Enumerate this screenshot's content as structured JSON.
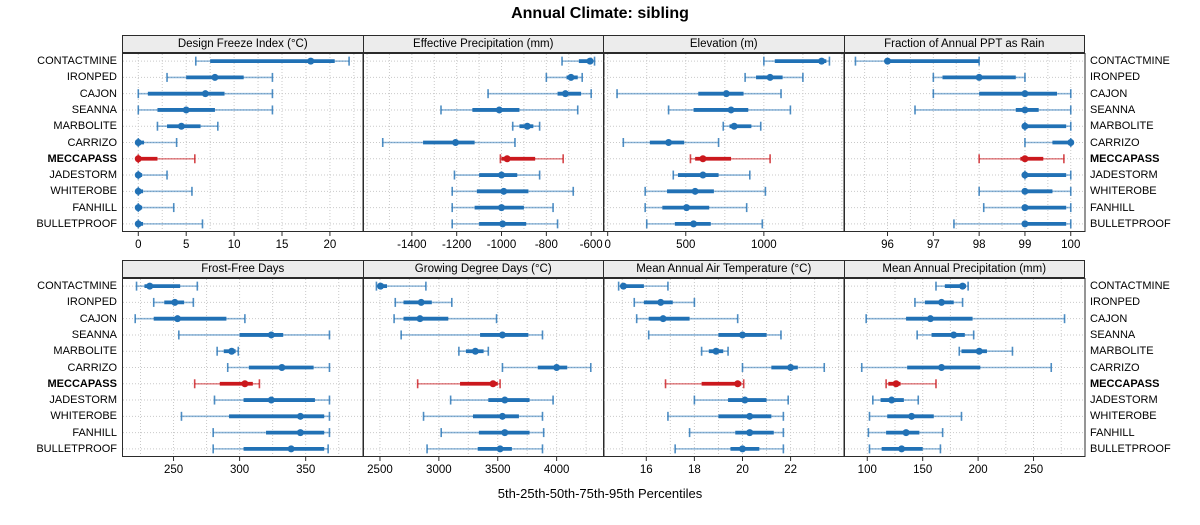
{
  "title": "Annual Climate: sibling",
  "footer": "5th-25th-50th-75th-95th Percentiles",
  "colors": {
    "series": "#2171B5",
    "highlight": "#CB181D",
    "grid": "#C9C9C9",
    "strip_bg": "#ECECEC",
    "border": "#2B2B2B",
    "text": "#000000"
  },
  "sites": [
    "CONTACTMINE",
    "IRONPED",
    "CAJON",
    "SEANNA",
    "MARBOLITE",
    "CARRIZO",
    "MECCAPASS",
    "JADESTORM",
    "WHITEROBE",
    "FANHILL",
    "BULLETPROOF"
  ],
  "highlight_site": "MECCAPASS",
  "percentile_order": [
    "p5",
    "p25",
    "p50",
    "p75",
    "p95"
  ],
  "chart_data": [
    {
      "type": "dotplot-percentiles",
      "title": "Design Freeze Index (°C)",
      "xlim": [
        -1.7,
        23.4
      ],
      "ticks": [
        0,
        5,
        10,
        15,
        20
      ],
      "grid_step": 2.5,
      "values": [
        [
          6,
          7.5,
          18,
          20.5,
          22
        ],
        [
          3,
          5,
          8,
          11,
          14
        ],
        [
          0,
          1,
          7,
          9,
          14
        ],
        [
          0,
          2,
          5,
          8,
          14
        ],
        [
          2,
          3,
          4.5,
          6.5,
          8.3
        ],
        [
          0,
          0,
          0,
          0.6,
          4
        ],
        [
          0,
          0,
          0,
          2,
          5.9
        ],
        [
          0,
          0,
          0,
          0.4,
          3
        ],
        [
          0,
          0,
          0,
          0.5,
          5.6
        ],
        [
          0,
          0,
          0,
          0.4,
          3.7
        ],
        [
          0,
          0,
          0,
          0.5,
          6.7
        ]
      ]
    },
    {
      "type": "dotplot-percentiles",
      "title": "Effective Precipitation (mm)",
      "xlim": [
        -1618,
        -545
      ],
      "ticks": [
        -1400,
        -1200,
        -1000,
        -800,
        -600
      ],
      "grid_step": 100,
      "values": [
        [
          -730,
          -655,
          -605,
          -597,
          -585
        ],
        [
          -800,
          -710,
          -690,
          -660,
          -640
        ],
        [
          -1060,
          -750,
          -715,
          -645,
          -600
        ],
        [
          -1270,
          -1130,
          -1010,
          -920,
          -660
        ],
        [
          -950,
          -920,
          -885,
          -858,
          -830
        ],
        [
          -1530,
          -1350,
          -1205,
          -1120,
          -940
        ],
        [
          -1005,
          -1000,
          -975,
          -850,
          -725
        ],
        [
          -1210,
          -1100,
          -1000,
          -930,
          -830
        ],
        [
          -1220,
          -1110,
          -990,
          -880,
          -680
        ],
        [
          -1220,
          -1120,
          -1000,
          -900,
          -770
        ],
        [
          -1220,
          -1100,
          -995,
          -890,
          -750
        ]
      ]
    },
    {
      "type": "dotplot-percentiles",
      "title": "Elevation (m)",
      "xlim": [
        -30,
        1510
      ],
      "ticks": [
        0,
        500,
        1000
      ],
      "grid_step": 250,
      "values": [
        [
          1000,
          1070,
          1370,
          1400,
          1420
        ],
        [
          880,
          950,
          1040,
          1120,
          1250
        ],
        [
          60,
          580,
          760,
          870,
          1110
        ],
        [
          390,
          550,
          790,
          900,
          1170
        ],
        [
          740,
          780,
          810,
          920,
          980
        ],
        [
          100,
          270,
          390,
          490,
          710
        ],
        [
          530,
          560,
          610,
          790,
          1040
        ],
        [
          420,
          450,
          610,
          710,
          910
        ],
        [
          240,
          380,
          560,
          680,
          1010
        ],
        [
          240,
          350,
          505,
          650,
          890
        ],
        [
          250,
          430,
          550,
          660,
          990
        ]
      ]
    },
    {
      "type": "dotplot-percentiles",
      "title": "Fraction of Annual PPT as Rain",
      "xlim": [
        95.05,
        100.3
      ],
      "ticks": [
        96,
        97,
        98,
        99,
        100
      ],
      "grid_step": 0.5,
      "values": [
        [
          95.3,
          96,
          96,
          98,
          98
        ],
        [
          97,
          97.2,
          98,
          98.8,
          99
        ],
        [
          97,
          98,
          99,
          99.7,
          100
        ],
        [
          96.6,
          98.8,
          99,
          99.3,
          100
        ],
        [
          99,
          99,
          99,
          99.9,
          100
        ],
        [
          99,
          99.6,
          100,
          100,
          100
        ],
        [
          98,
          98.9,
          99,
          99.4,
          99.85
        ],
        [
          99,
          99,
          99,
          99.9,
          100
        ],
        [
          98,
          99,
          99,
          99.6,
          100
        ],
        [
          98.1,
          99,
          99,
          99.9,
          100
        ],
        [
          97.45,
          99,
          99,
          99.9,
          100
        ]
      ]
    },
    {
      "type": "dotplot-percentiles",
      "title": "Frost-Free Days",
      "xlim": [
        211,
        393
      ],
      "ticks": [
        250,
        300,
        350
      ],
      "grid_step": 25,
      "values": [
        [
          222,
          228,
          232,
          255,
          268
        ],
        [
          235,
          243,
          251,
          258,
          265
        ],
        [
          221,
          235,
          253,
          290,
          304
        ],
        [
          254,
          300,
          324,
          333,
          368
        ],
        [
          283,
          288,
          294,
          297,
          299
        ],
        [
          291,
          307,
          332,
          356,
          368
        ],
        [
          266,
          285,
          304,
          310,
          315
        ],
        [
          281,
          303,
          324,
          357,
          368
        ],
        [
          256,
          292,
          346,
          364,
          368
        ],
        [
          280,
          320,
          346,
          364,
          368
        ],
        [
          280,
          303,
          339,
          364,
          367
        ]
      ]
    },
    {
      "type": "dotplot-percentiles",
      "title": "Growing Degree Days (°C)",
      "xlim": [
        2356,
        4398
      ],
      "ticks": [
        2500,
        3000,
        3500,
        4000
      ],
      "grid_step": 250,
      "values": [
        [
          2470,
          2485,
          2505,
          2560,
          2890
        ],
        [
          2630,
          2700,
          2850,
          2940,
          3110
        ],
        [
          2620,
          2700,
          2840,
          3080,
          3490
        ],
        [
          2680,
          3350,
          3540,
          3760,
          3880
        ],
        [
          3170,
          3230,
          3310,
          3380,
          3420
        ],
        [
          3540,
          3840,
          4000,
          4090,
          4290
        ],
        [
          2820,
          3180,
          3460,
          3500,
          3520
        ],
        [
          3100,
          3420,
          3560,
          3770,
          3970
        ],
        [
          2870,
          3290,
          3540,
          3680,
          3880
        ],
        [
          3020,
          3340,
          3560,
          3770,
          3890
        ],
        [
          2900,
          3330,
          3520,
          3620,
          3880
        ]
      ]
    },
    {
      "type": "dotplot-percentiles",
      "title": "Mean Annual Air Temperature (°C)",
      "xlim": [
        14.2,
        24.2
      ],
      "ticks": [
        16,
        18,
        20,
        22
      ],
      "grid_step": 1,
      "values": [
        [
          14.85,
          14.95,
          15.05,
          15.9,
          16.9
        ],
        [
          15.5,
          15.9,
          16.6,
          17.1,
          18.0
        ],
        [
          15.6,
          16.1,
          16.7,
          17.8,
          19.8
        ],
        [
          16.1,
          19.0,
          20.0,
          21.0,
          21.6
        ],
        [
          18.3,
          18.6,
          18.9,
          19.2,
          19.4
        ],
        [
          20.0,
          21.2,
          22.0,
          22.3,
          23.4
        ],
        [
          16.8,
          18.3,
          19.8,
          19.95,
          20.05
        ],
        [
          18.0,
          19.4,
          20.1,
          21.0,
          21.9
        ],
        [
          16.9,
          19.0,
          20.3,
          21.2,
          21.7
        ],
        [
          17.8,
          19.7,
          20.3,
          21.3,
          21.7
        ],
        [
          17.2,
          19.5,
          20.0,
          20.7,
          21.7
        ]
      ]
    },
    {
      "type": "dotplot-percentiles",
      "title": "Mean Annual Precipitation (mm)",
      "xlim": [
        79,
        296
      ],
      "ticks": [
        100,
        150,
        200,
        250
      ],
      "grid_step": 25,
      "values": [
        [
          162,
          170,
          186,
          189,
          191
        ],
        [
          143,
          152,
          167,
          178,
          186
        ],
        [
          99,
          135,
          157,
          195,
          278
        ],
        [
          145,
          158,
          178,
          188,
          196
        ],
        [
          183,
          185,
          201,
          208,
          231
        ],
        [
          95,
          136,
          167,
          202,
          266
        ],
        [
          117,
          119,
          126,
          130,
          162
        ],
        [
          105,
          112,
          122,
          133,
          146
        ],
        [
          102,
          118,
          140,
          160,
          185
        ],
        [
          101,
          117,
          135,
          147,
          168
        ],
        [
          102,
          113,
          131,
          150,
          166
        ]
      ]
    }
  ]
}
